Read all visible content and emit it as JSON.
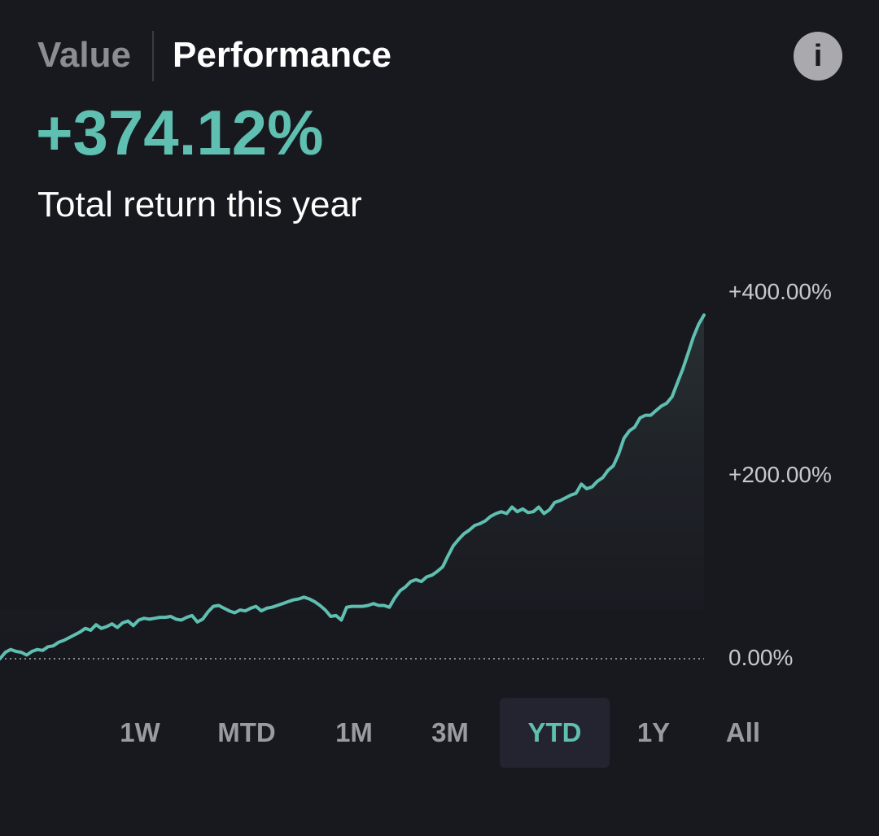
{
  "tabs": {
    "value_label": "Value",
    "performance_label": "Performance",
    "selected": "Performance"
  },
  "info_icon": "info-icon",
  "summary": {
    "return_value": "+374.12%",
    "caption": "Total return this year"
  },
  "colors": {
    "accent": "#5fbfb0",
    "background": "#18181f",
    "active_range_bg": "#242430"
  },
  "chart_data": {
    "type": "area",
    "ylim": [
      0,
      400
    ],
    "y_ticks": [
      "+400.00%",
      "+200.00%",
      "0.00%"
    ],
    "baseline": 0,
    "baseline_style": "dotted",
    "grid": false,
    "y_axis_side": "right",
    "series": [
      {
        "values": [
          0,
          7,
          10,
          8,
          7,
          4,
          8,
          10,
          9,
          13,
          14,
          18,
          20,
          23,
          26,
          29,
          33,
          31,
          37,
          33,
          35,
          38,
          34,
          39,
          41,
          36,
          42,
          44,
          43,
          44,
          45,
          45,
          46,
          43,
          42,
          45,
          47,
          40,
          43,
          51,
          57,
          58,
          55,
          52,
          50,
          53,
          52,
          55,
          57,
          52,
          55,
          56,
          58,
          60,
          62,
          64,
          65,
          67,
          65,
          62,
          58,
          53,
          46,
          47,
          42,
          56,
          57,
          57,
          57,
          58,
          60,
          58,
          58,
          56,
          66,
          74,
          78,
          84,
          86,
          84,
          89,
          91,
          95,
          100,
          112,
          123,
          130,
          136,
          140,
          145,
          147,
          150,
          155,
          158,
          160,
          158,
          165,
          160,
          163,
          159,
          160,
          165,
          158,
          162,
          170,
          172,
          175,
          178,
          180,
          190,
          185,
          187,
          193,
          197,
          205,
          210,
          223,
          240,
          248,
          252,
          262,
          265,
          265,
          270,
          275,
          278,
          285,
          300,
          315,
          332,
          350,
          364,
          374
        ]
      }
    ]
  },
  "ranges": [
    {
      "label": "1W",
      "active": false
    },
    {
      "label": "MTD",
      "active": false
    },
    {
      "label": "1M",
      "active": false
    },
    {
      "label": "3M",
      "active": false
    },
    {
      "label": "YTD",
      "active": true
    },
    {
      "label": "1Y",
      "active": false
    },
    {
      "label": "All",
      "active": false
    }
  ]
}
